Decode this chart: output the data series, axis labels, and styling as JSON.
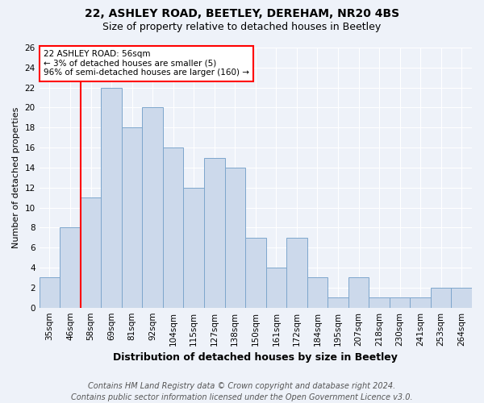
{
  "title": "22, ASHLEY ROAD, BEETLEY, DEREHAM, NR20 4BS",
  "subtitle": "Size of property relative to detached houses in Beetley",
  "xlabel": "Distribution of detached houses by size in Beetley",
  "ylabel": "Number of detached properties",
  "categories": [
    "35sqm",
    "46sqm",
    "58sqm",
    "69sqm",
    "81sqm",
    "92sqm",
    "104sqm",
    "115sqm",
    "127sqm",
    "138sqm",
    "150sqm",
    "161sqm",
    "172sqm",
    "184sqm",
    "195sqm",
    "207sqm",
    "218sqm",
    "230sqm",
    "241sqm",
    "253sqm",
    "264sqm"
  ],
  "values": [
    3,
    8,
    11,
    22,
    18,
    20,
    16,
    12,
    15,
    14,
    7,
    4,
    7,
    3,
    1,
    3,
    1,
    1,
    1,
    2,
    2
  ],
  "bar_color": "#ccd9eb",
  "bar_edge_color": "#7da6cc",
  "red_line_index": 2,
  "annotation_text": "22 ASHLEY ROAD: 56sqm\n← 3% of detached houses are smaller (5)\n96% of semi-detached houses are larger (160) →",
  "annotation_box_color": "white",
  "annotation_box_edge_color": "red",
  "ylim": [
    0,
    26
  ],
  "yticks": [
    0,
    2,
    4,
    6,
    8,
    10,
    12,
    14,
    16,
    18,
    20,
    22,
    24,
    26
  ],
  "footer_line1": "Contains HM Land Registry data © Crown copyright and database right 2024.",
  "footer_line2": "Contains public sector information licensed under the Open Government Licence v3.0.",
  "background_color": "#eef2f9",
  "title_fontsize": 10,
  "subtitle_fontsize": 9,
  "xlabel_fontsize": 9,
  "ylabel_fontsize": 8,
  "tick_fontsize": 7.5,
  "annotation_fontsize": 7.5,
  "footer_fontsize": 7
}
